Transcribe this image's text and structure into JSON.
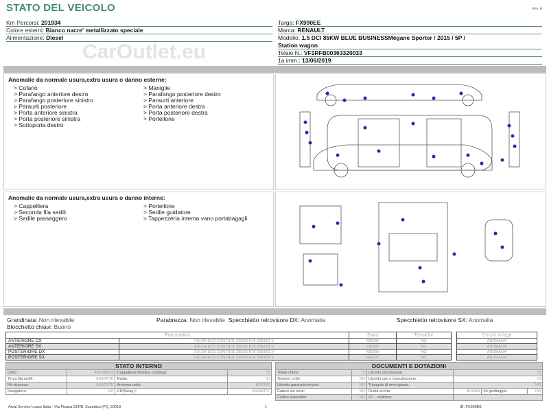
{
  "header": {
    "title": "STATO DEL VEICOLO",
    "rev": "Rev. A"
  },
  "left_info": [
    {
      "label": "Km Percorsi:",
      "value": "201934"
    },
    {
      "label": "Colore esterni:",
      "value": "Bianco nacre' metallizzato speciale"
    },
    {
      "label": "Alimentazione:",
      "value": "Diesel"
    }
  ],
  "right_info": {
    "targa": {
      "label": "Targa:",
      "value": "FX990EE"
    },
    "marca": {
      "label": "Marca:",
      "value": "RENAULT"
    },
    "modello": {
      "label": "Modello:",
      "value": "1.5 DCI 85KW BLUE BUSINESSMégane Sporter / 2015 / 5P /",
      "value2": "Station wagon"
    },
    "telaio": {
      "label": "Telaio N.:",
      "value": "VF1RFB00363320033"
    },
    "imm": {
      "label": "1a imm.:",
      "value": "13/06/2019"
    }
  },
  "exterior": {
    "title": "Anomalie da normale usura,extra usura o danno esterne:",
    "col1": [
      "> Cofano",
      "> Parafango anteriore destro",
      "> Parafango posteriore sinistro",
      "> Paraurti posteriore",
      "> Porta anteriore sinistra",
      "> Porta posteriore sinistra",
      "> Sottoporta destro"
    ],
    "col2": [
      "> Maniglie",
      "> Parafango posteriore destro",
      "> Paraurti anteriore",
      "> Porta anteriore destra",
      "> Porta posteriore destra",
      "> Portellone"
    ]
  },
  "interior": {
    "title": "Anomalie da normale usura,extra usura o danno interne:",
    "col1": [
      "> Cappelliera",
      "> Seconda fila sedili",
      "> Sedile passeggero"
    ],
    "col2": [
      "> Portellone",
      "> Sedile guidatore",
      "> Tappezzeria interna vano portabagagli"
    ]
  },
  "misc": {
    "grandinata": {
      "label": "Grandinata:",
      "value": "Non rilevabile"
    },
    "parabrezza": {
      "label": "Parabrezza:",
      "value": "Non rilevabile"
    },
    "spec_dx": {
      "label": "Specchietto retrovisore DX:",
      "value": "Anomalia"
    },
    "spec_sx": {
      "label": "Specchietto retrovisore SX:",
      "value": "Anomalia"
    },
    "blocchetto": {
      "label": "Blocchetto chiavi:",
      "value": "Buono"
    }
  },
  "tyres": {
    "headers": [
      "Pneumatico",
      "Stato",
      "Termiche"
    ],
    "cerchi_header": "Cerchi in lega",
    "rows": [
      {
        "pos": "ANTERIORE DX",
        "tyre": "FULDA ECO CONTROL 205/55 R16 000/091 V",
        "stato": "MEDIO",
        "termiche": "NO",
        "cerchi": "ANOMALIA"
      },
      {
        "pos": "ANTERIORE SX",
        "tyre": "FULDA ECO CONTROL 205/55 R16 000/091 V",
        "stato": "MEDIO",
        "termiche": "NO",
        "cerchi": "ANOMALIA"
      },
      {
        "pos": "POSTERIORE DX",
        "tyre": "FULDA ECO CONTROL 205/55 R16 000/091 V",
        "stato": "MEDIO",
        "termiche": "NO",
        "cerchi": "ANOMALIA"
      },
      {
        "pos": "POSTERIORE SX",
        "tyre": "FULDA ECO CONTROL 205/55 R16 000/091 V",
        "stato": "MEDIO",
        "termiche": "NO",
        "cerchi": "ANOMALIA"
      }
    ]
  },
  "stato_interno": {
    "title": "STATO INTERNO",
    "rows": [
      [
        "Cielo:",
        "ANOMALIA",
        "Cappelliera/Tendina copribag:",
        "SI"
      ],
      [
        "Terza fila sedili:",
        "ASSENTE",
        "Radio:",
        "SI"
      ],
      [
        "Kit vivavoce:",
        "ASSENTE",
        "Antenna radio:",
        "BUONO"
      ],
      [
        "Navigatore:",
        "NO",
        "CD(Navig.):",
        "ASSENTE"
      ]
    ]
  },
  "documenti": {
    "title": "DOCUMENTI E DOTAZIONI",
    "rows": [
      [
        "Totale chiavi:",
        "2",
        "Libretto circolazione:",
        "SI"
      ],
      [
        "Tessere code:",
        "NO",
        "Libretto uso e manutenzione:",
        "SI"
      ],
      [
        "Libretto garanzia/service:",
        "NO",
        "Triangolo di emergenza:",
        "NO"
      ],
      [
        "Catene da neve:",
        "NO",
        "Ruota scorta:",
        "BUONA",
        "Kit gonfiaggio:",
        "NO"
      ],
      [
        "Codice autoradio:",
        "NO",
        "Cr ... elettrico:",
        ""
      ]
    ]
  },
  "footer": {
    "address": "Arval Service Lease Italia - Via Pisana 314/B, Scandicci (FI), 50018",
    "page": "1",
    "ref": "ID: FX990EE"
  },
  "watermark": "CarOutlet.eu",
  "colors": {
    "title": "#3f8a7c",
    "dots": "#2a2aa8"
  }
}
